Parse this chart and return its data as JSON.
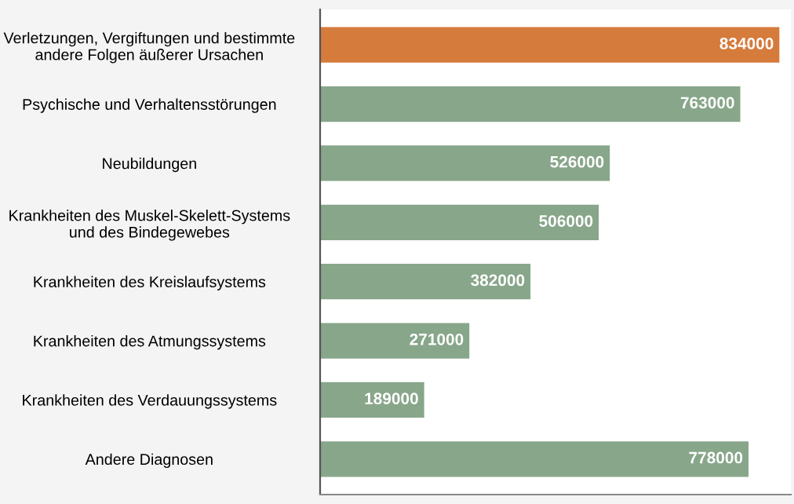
{
  "chart_data": {
    "type": "bar",
    "orientation": "horizontal",
    "categories": [
      "Verletzungen, Vergiftungen und bestimmte\nandere Folgen äußerer Ursachen",
      "Psychische und Verhaltensstörungen",
      "Neubildungen",
      "Krankheiten des Muskel-Skelett-Systems\nund des Bindegewebes",
      "Krankheiten des Kreislaufsystems",
      "Krankheiten des Atmungssystems",
      "Krankheiten des Verdauungssystems",
      "Andere Diagnosen"
    ],
    "values": [
      834000,
      763000,
      526000,
      506000,
      382000,
      271000,
      189000,
      778000
    ],
    "colors": [
      "#d57b3c",
      "#88a68a",
      "#88a68a",
      "#88a68a",
      "#88a68a",
      "#88a68a",
      "#88a68a",
      "#88a68a"
    ],
    "data_labels": true,
    "tick_labels": "y",
    "grid": false,
    "legend": false
  }
}
